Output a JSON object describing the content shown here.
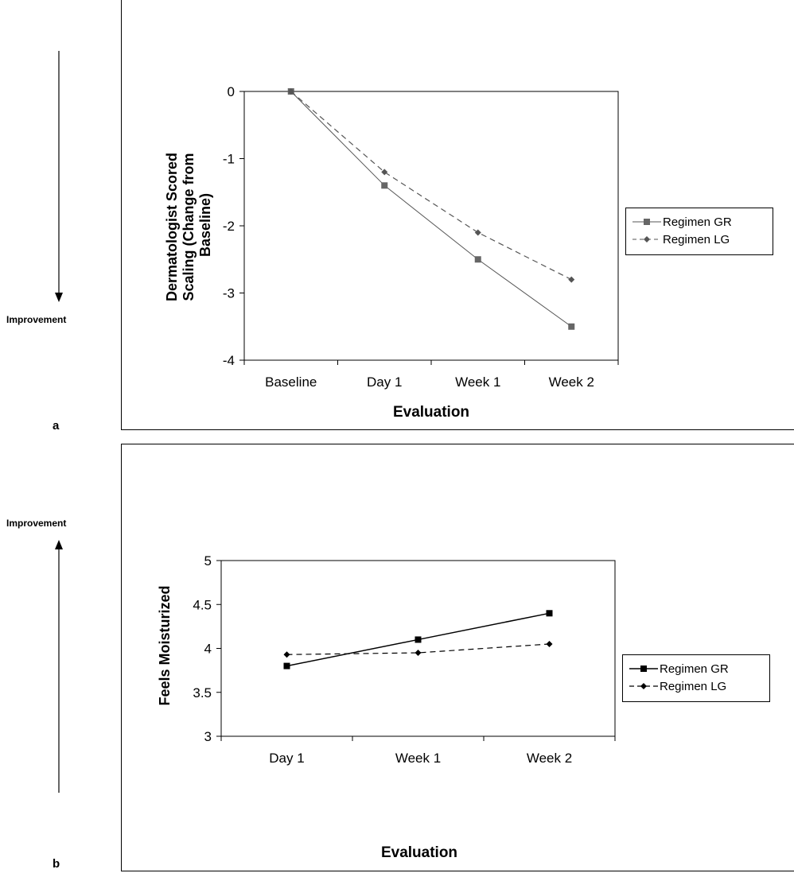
{
  "side_labels": {
    "improvement_a": "Improvement",
    "improvement_b": "Improvement"
  },
  "panel_letters": {
    "a": "a",
    "b": "b"
  },
  "chart_data": [
    {
      "type": "line",
      "panel": "a",
      "categories": [
        "Baseline",
        "Day 1",
        "Week 1",
        "Week 2"
      ],
      "xlabel": "Evaluation",
      "ylabel": "Dermatologist Scored Scaling (Change from Baseline)",
      "ylabel_lines": [
        "Dermatologist Scored",
        "Scaling (Change from",
        "Baseline)"
      ],
      "ylim": [
        -4,
        0
      ],
      "yticks": [
        0,
        -1,
        -2,
        -3,
        -4
      ],
      "ytick_labels": [
        "0",
        "-1",
        "-2",
        "-3",
        "-4"
      ],
      "grid": false,
      "legend_position": "right",
      "series": [
        {
          "name": "Regimen GR",
          "values": [
            0,
            -1.4,
            -2.5,
            -3.5
          ],
          "line": "solid",
          "marker": "square",
          "color": "#555555"
        },
        {
          "name": "Regimen LG",
          "values": [
            0,
            -1.2,
            -2.1,
            -2.8
          ],
          "line": "dashed",
          "marker": "diamond",
          "color": "#555555"
        }
      ]
    },
    {
      "type": "line",
      "panel": "b",
      "categories": [
        "Day 1",
        "Week 1",
        "Week 2"
      ],
      "xlabel": "Evaluation",
      "ylabel": "Feels Moisturized",
      "ylim": [
        3,
        5
      ],
      "yticks": [
        5,
        4.5,
        4,
        3.5,
        3
      ],
      "ytick_labels": [
        "5",
        "4.5",
        "4",
        "3.5",
        "3"
      ],
      "grid": false,
      "legend_position": "right",
      "series": [
        {
          "name": "Regimen GR",
          "values": [
            3.8,
            4.1,
            4.4
          ],
          "line": "solid",
          "marker": "square",
          "color": "#000000"
        },
        {
          "name": "Regimen LG",
          "values": [
            3.93,
            3.95,
            4.05
          ],
          "line": "dashed",
          "marker": "diamond",
          "color": "#000000"
        }
      ]
    }
  ]
}
